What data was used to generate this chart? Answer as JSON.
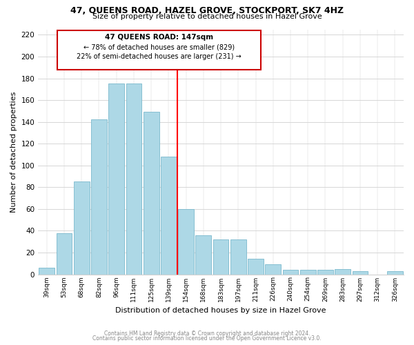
{
  "title": "47, QUEENS ROAD, HAZEL GROVE, STOCKPORT, SK7 4HZ",
  "subtitle": "Size of property relative to detached houses in Hazel Grove",
  "xlabel": "Distribution of detached houses by size in Hazel Grove",
  "ylabel": "Number of detached properties",
  "bar_labels": [
    "39sqm",
    "53sqm",
    "68sqm",
    "82sqm",
    "96sqm",
    "111sqm",
    "125sqm",
    "139sqm",
    "154sqm",
    "168sqm",
    "183sqm",
    "197sqm",
    "211sqm",
    "226sqm",
    "240sqm",
    "254sqm",
    "269sqm",
    "283sqm",
    "297sqm",
    "312sqm",
    "326sqm"
  ],
  "bar_values": [
    6,
    38,
    85,
    142,
    175,
    175,
    149,
    108,
    60,
    36,
    32,
    32,
    14,
    9,
    4,
    4,
    4,
    5,
    3,
    0,
    3
  ],
  "bar_color": "#add8e6",
  "bar_edge_color": "#7ab8cc",
  "vline_x": 8.0,
  "vline_color": "red",
  "annotation_title": "47 QUEENS ROAD: 147sqm",
  "annotation_line1": "← 78% of detached houses are smaller (829)",
  "annotation_line2": "22% of semi-detached houses are larger (231) →",
  "annotation_box_color": "#ffffff",
  "annotation_box_edge_color": "#cc0000",
  "ylim": [
    0,
    225
  ],
  "yticks": [
    0,
    20,
    40,
    60,
    80,
    100,
    120,
    140,
    160,
    180,
    200,
    220
  ],
  "footer1": "Contains HM Land Registry data © Crown copyright and database right 2024.",
  "footer2": "Contains public sector information licensed under the Open Government Licence v3.0."
}
